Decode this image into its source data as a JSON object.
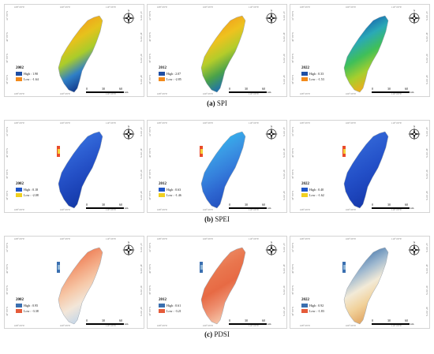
{
  "captions": [
    {
      "letter": "(a)",
      "name": "SPI"
    },
    {
      "letter": "(b)",
      "name": "SPEI"
    },
    {
      "letter": "(c)",
      "name": "PDSI"
    }
  ],
  "ticks": {
    "top": [
      "108° 0'0\"E",
      "109° 0'0\"E",
      "110° 0'0\"E"
    ],
    "bottom": [
      "108° 0'0\"E",
      "109° 0'0\"E",
      "110° 0'0\"E"
    ],
    "left": [
      "41° 0'0\"N",
      "40° 0'0\"N",
      "39° 0'0\"N",
      "38° 0'0\"N"
    ],
    "right": [
      "41° 0'0\"N",
      "40° 0'0\"N",
      "39° 0'0\"N",
      "38° 0'0\"N"
    ]
  },
  "compass_label": "N",
  "scale_bar": {
    "labels": [
      "0",
      "30",
      "60"
    ],
    "unit": "km"
  },
  "rows": [
    {
      "index": "SPI",
      "maps": [
        {
          "year": "2002",
          "high": "High : 1.90",
          "low": "Low : -1.64",
          "high_color": "#1f4fa5",
          "low_color": "#f28a1b",
          "colors": [
            "#f58a18",
            "#f2a11c",
            "#e6c21c",
            "#aacc2a",
            "#2f7fc6",
            "#123a8c"
          ]
        },
        {
          "year": "2012",
          "high": "High : 2.07",
          "low": "Low : -2.85",
          "high_color": "#1f4fa5",
          "low_color": "#f28a1b",
          "colors": [
            "#f39018",
            "#f2a11c",
            "#eec21f",
            "#b4cc2a",
            "#4aa24a",
            "#1d6fb2"
          ]
        },
        {
          "year": "2022",
          "high": "High : 0.33",
          "low": "Low : -1.53",
          "high_color": "#1f4fa5",
          "low_color": "#f28a1b",
          "colors": [
            "#0e2f7a",
            "#1764b0",
            "#2aa9b6",
            "#3fbf59",
            "#a6cf2d",
            "#f0ac1e"
          ]
        }
      ]
    },
    {
      "index": "SPEI",
      "maps": [
        {
          "year": "2002",
          "high": "High : 0.18",
          "low": "Low : -2.08",
          "high_color": "#1f55c8",
          "low_color": "#f0d020",
          "colors": [
            "#3f7fe6",
            "#3670dd",
            "#2d5fd2",
            "#2450c6",
            "#1c44b8",
            "#143aa8"
          ]
        },
        {
          "year": "2012",
          "high": "High : 0.63",
          "low": "Low : -1.46",
          "high_color": "#1f55c8",
          "low_color": "#f0d020",
          "colors": [
            "#29c5f0",
            "#33b2ec",
            "#3a98e4",
            "#3580dc",
            "#2d66d0",
            "#2453c0"
          ]
        },
        {
          "year": "2022",
          "high": "High : 0.40",
          "low": "Low : -1.62",
          "high_color": "#1f55c8",
          "low_color": "#f0d020",
          "colors": [
            "#3d74e0",
            "#3468d8",
            "#2b5cd0",
            "#2350c8",
            "#1d45bc",
            "#173aac"
          ]
        }
      ]
    },
    {
      "index": "PDSI",
      "maps": [
        {
          "year": "2002",
          "high": "High : 0.95",
          "low": "Low : -3.38",
          "high_color": "#3a6fb0",
          "low_color": "#e55b3a",
          "colors": [
            "#e85a38",
            "#ee7a52",
            "#f3a27c",
            "#f6c8a8",
            "#f3e6d8",
            "#c7d8e8"
          ]
        },
        {
          "year": "2012",
          "high": "High : 0.61",
          "low": "Low : -3.21",
          "high_color": "#3a6fb0",
          "low_color": "#e55b3a",
          "colors": [
            "#f0a283",
            "#ec8a64",
            "#e9764e",
            "#e76a44",
            "#ee9070",
            "#f5c4a8"
          ]
        },
        {
          "year": "2022",
          "high": "High : 0.92",
          "low": "Low : -1.83",
          "high_color": "#3a6fb0",
          "low_color": "#e55b3a",
          "colors": [
            "#264f8a",
            "#4f7eb0",
            "#9eb8cf",
            "#f2ead7",
            "#f1d19a",
            "#e2a765"
          ]
        }
      ]
    }
  ]
}
